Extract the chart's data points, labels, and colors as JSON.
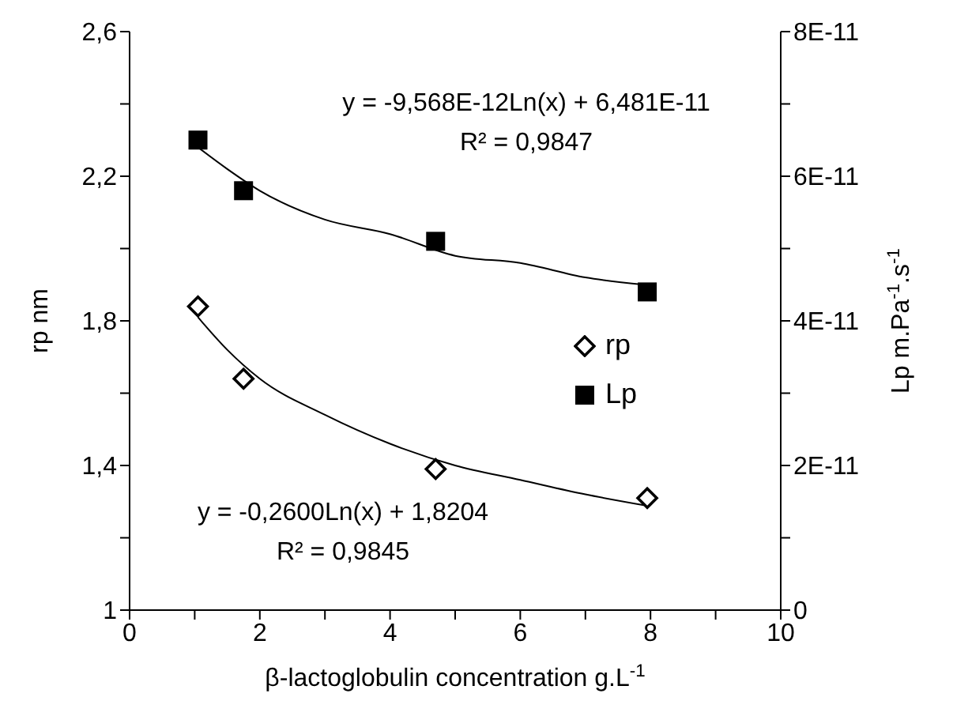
{
  "chart_data": {
    "type": "scatter",
    "xlabel": "β-lactoglobulin concentration g.L$^{-1}$",
    "ylabel": "rp nm",
    "y2label": "Lp m.Pa$^{-1}$.s$^{-1}$",
    "xlim": [
      0,
      10
    ],
    "xticks": [
      0,
      {
        "value": 1,
        "label": null
      },
      2,
      {
        "value": 3,
        "label": null
      },
      4,
      {
        "value": 5,
        "label": null
      },
      6,
      {
        "value": 7,
        "label": null
      },
      8,
      {
        "value": 9,
        "label": null
      },
      10
    ],
    "ylim": [
      1,
      2.6
    ],
    "yticks": [
      1,
      {
        "value": 1.2,
        "label": null
      },
      {
        "value": 1.4,
        "label": "1,4"
      },
      {
        "value": 1.6,
        "label": null
      },
      {
        "value": 1.8,
        "label": "1,8"
      },
      {
        "value": 2.0,
        "label": null
      },
      {
        "value": 2.2,
        "label": "2,2"
      },
      {
        "value": 2.4,
        "label": null
      },
      {
        "value": 2.6,
        "label": "2,6"
      }
    ],
    "y2lim": [
      0,
      8e-11
    ],
    "y2ticks": [
      0,
      {
        "value": 1e-11,
        "label": null
      },
      {
        "value": 2e-11,
        "label": "2E-11"
      },
      {
        "value": 3e-11,
        "label": null
      },
      {
        "value": 4e-11,
        "label": "4E-11"
      },
      {
        "value": 5e-11,
        "label": null
      },
      {
        "value": 6e-11,
        "label": "6E-11"
      },
      {
        "value": 7e-11,
        "label": null
      },
      {
        "value": 8e-11,
        "label": "8E-11"
      }
    ],
    "grid": false,
    "legend": "right",
    "series": [
      {
        "name": "rp",
        "marker": "diamond",
        "color": "#000000",
        "x": [
          1.05,
          1.75,
          4.7,
          7.95
        ],
        "values": [
          1.84,
          1.64,
          1.39,
          1.31
        ]
      },
      {
        "name": "Lp",
        "marker": "square",
        "color": "#000000",
        "axis": "y2",
        "x": [
          1.05,
          1.75,
          4.7,
          7.95
        ],
        "values": [
          6.5e-11,
          5.8e-11,
          5.1e-11,
          4.4e-11
        ]
      },
      {
        "type": "line",
        "color": "#000000",
        "x": [
          1.05,
          1.5,
          2,
          3,
          4,
          5,
          6,
          7,
          7.9
        ],
        "values": [
          1.81,
          1.72,
          1.64,
          1.54,
          1.46,
          1.4,
          1.36,
          1.32,
          1.29
        ]
      },
      {
        "type": "line",
        "color": "#000000",
        "axis": "y2",
        "x": [
          1.05,
          1.5,
          2,
          3,
          4,
          5,
          6,
          7,
          7.9
        ],
        "values": [
          6.4e-11,
          6.1e-11,
          5.8e-11,
          5.4e-11,
          5.2e-11,
          4.9e-11,
          4.8e-11,
          4.6e-11,
          4.5e-11
        ]
      }
    ],
    "annotations": [
      "y = -9,568E-12Ln(x) + 6,481E-11",
      "R² = 0,9847",
      "y = -0,2600Ln(x) + 1,8204",
      "R² = 0,9845"
    ]
  }
}
